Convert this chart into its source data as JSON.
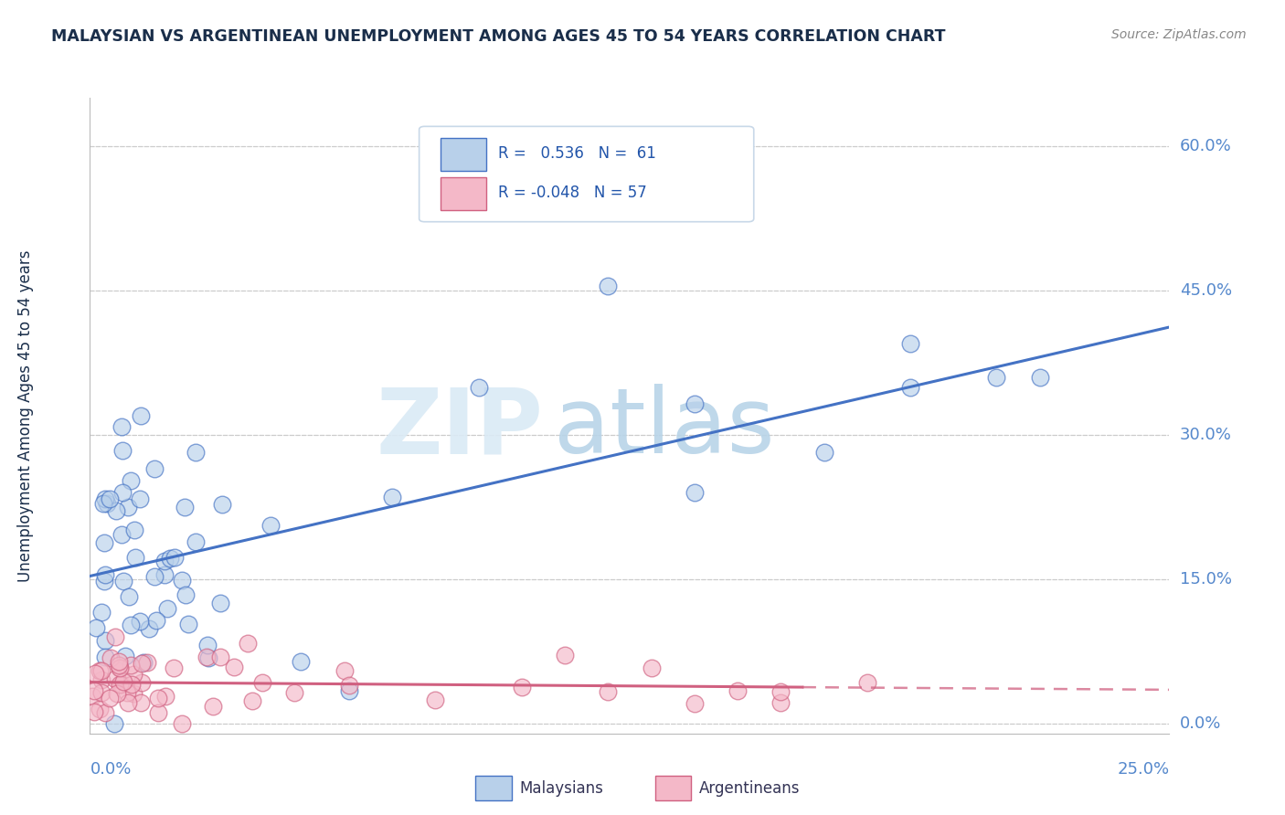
{
  "title": "MALAYSIAN VS ARGENTINEAN UNEMPLOYMENT AMONG AGES 45 TO 54 YEARS CORRELATION CHART",
  "source": "Source: ZipAtlas.com",
  "ylabel": "Unemployment Among Ages 45 to 54 years",
  "ytick_labels": [
    "0.0%",
    "15.0%",
    "30.0%",
    "45.0%",
    "60.0%"
  ],
  "ytick_values": [
    0.0,
    0.15,
    0.3,
    0.45,
    0.6
  ],
  "xtick_labels": [
    "0.0%",
    "25.0%"
  ],
  "xlim": [
    0.0,
    0.25
  ],
  "ylim": [
    -0.01,
    0.65
  ],
  "r_malaysian": 0.536,
  "n_malaysian": 61,
  "r_argentinean": -0.048,
  "n_argentinean": 57,
  "malaysian_scatter_color": "#b8d0ea",
  "malaysian_line_color": "#4472c4",
  "argentinean_scatter_color": "#f4b8c8",
  "argentinean_line_color": "#d06080",
  "background_color": "#ffffff",
  "watermark_color": "#daeaf5",
  "title_color": "#1a2e4a",
  "source_color": "#888888",
  "grid_color": "#cccccc",
  "tick_label_color": "#5588cc",
  "legend_label_color": "#2255aa",
  "bottom_legend_label_color": "#333355"
}
